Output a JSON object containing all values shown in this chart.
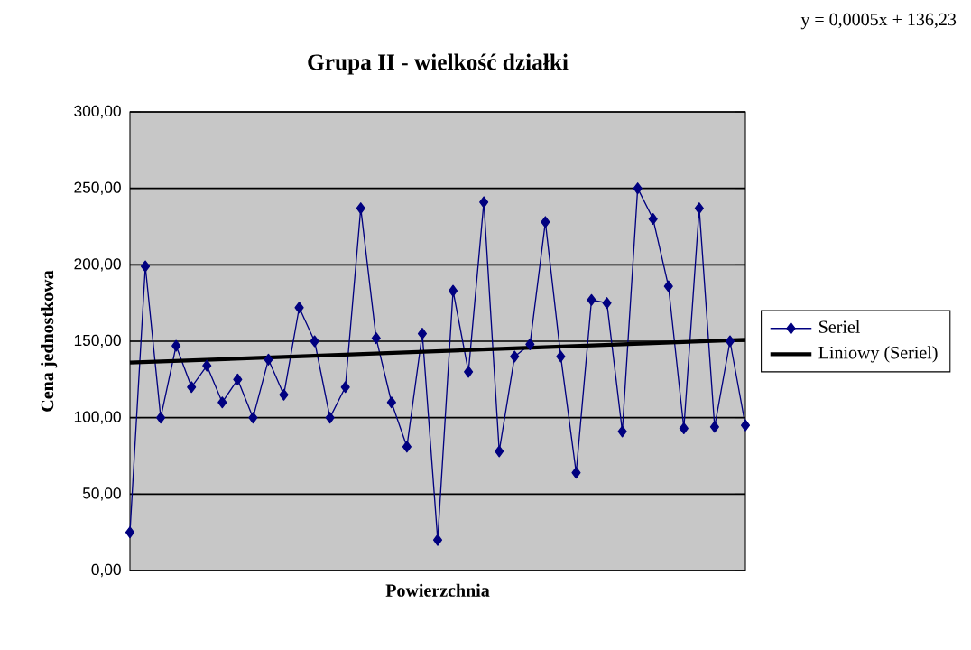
{
  "chart_data": {
    "type": "line",
    "title": "Grupa II - wielkość działki",
    "xlabel": "Powierzchnia",
    "ylabel": "Cena jednostkowa",
    "annotations": [
      "y = 0,0005x + 136,23"
    ],
    "categories": [
      null,
      null,
      null,
      null,
      null,
      null,
      null,
      null,
      null,
      null,
      null,
      null,
      null,
      null,
      null,
      null,
      null,
      null,
      null,
      null,
      null,
      null,
      null,
      null,
      null,
      null,
      null,
      null,
      null,
      null,
      null,
      null,
      null,
      null,
      null,
      null,
      null,
      null,
      null,
      null,
      null
    ],
    "series": [
      {
        "name": "Seriel",
        "color": "#000080",
        "marker": "diamond",
        "values": [
          25,
          199,
          100,
          147,
          120,
          134,
          110,
          125,
          100,
          138,
          115,
          172,
          150,
          100,
          120,
          237,
          152,
          110,
          81,
          155,
          20,
          183,
          130,
          241,
          78,
          140,
          148,
          228,
          140,
          64,
          177,
          175,
          91,
          250,
          230,
          186,
          93,
          237,
          94,
          150,
          95
        ]
      },
      {
        "name": "Liniowy (Seriel)",
        "type": "line",
        "color": "#000000",
        "marker": "none",
        "values": [
          136,
          null,
          null,
          null,
          null,
          null,
          null,
          null,
          null,
          null,
          null,
          null,
          null,
          null,
          null,
          null,
          null,
          null,
          null,
          null,
          null,
          null,
          null,
          null,
          null,
          null,
          null,
          null,
          null,
          null,
          null,
          null,
          null,
          null,
          null,
          null,
          null,
          null,
          null,
          null,
          151
        ]
      }
    ],
    "ylim": [
      0,
      300
    ],
    "yticks": [
      {
        "value": 0,
        "label": "0,00"
      },
      {
        "value": 50,
        "label": "50,00"
      },
      {
        "value": 100,
        "label": "100,00"
      },
      {
        "value": 150,
        "label": "150,00"
      },
      {
        "value": 200,
        "label": "200,00"
      },
      {
        "value": 250,
        "label": "250,00"
      },
      {
        "value": 300,
        "label": "300,00"
      }
    ],
    "tick_labels": "y",
    "grid": "y",
    "legend": "right"
  }
}
